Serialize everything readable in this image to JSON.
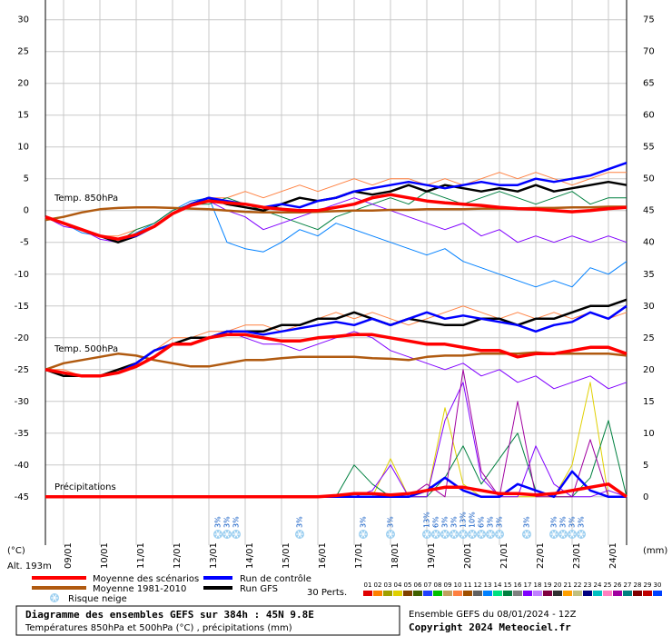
{
  "chart_data": {
    "type": "line",
    "unit_left": "(°C)",
    "unit_right": "(mm)",
    "altitude": "Alt. 193m",
    "annotations": [
      "Temp. 850hPa",
      "Temp. 500hPa",
      "Précipitations"
    ],
    "x": [
      0,
      12,
      24,
      36,
      48,
      60,
      72,
      84,
      96,
      108,
      120,
      132,
      144,
      156,
      168,
      180,
      192,
      204,
      216,
      228,
      240,
      252,
      264,
      276,
      288,
      300,
      312,
      324,
      336,
      348,
      360,
      372,
      384
    ],
    "xlim": [
      0,
      384
    ],
    "xticks": [
      {
        "value": 12,
        "label": "09/01"
      },
      {
        "value": 36,
        "label": "10/01"
      },
      {
        "value": 60,
        "label": "11/01"
      },
      {
        "value": 84,
        "label": "12/01"
      },
      {
        "value": 108,
        "label": "13/01"
      },
      {
        "value": 132,
        "label": "14/01"
      },
      {
        "value": 156,
        "label": "15/01"
      },
      {
        "value": 180,
        "label": "16/01"
      },
      {
        "value": 204,
        "label": "17/01"
      },
      {
        "value": 228,
        "label": "18/01"
      },
      {
        "value": 252,
        "label": "19/01"
      },
      {
        "value": 276,
        "label": "20/01"
      },
      {
        "value": 300,
        "label": "21/01"
      },
      {
        "value": 324,
        "label": "22/01"
      },
      {
        "value": 348,
        "label": "23/01"
      },
      {
        "value": 372,
        "label": "24/01"
      }
    ],
    "ylim": [
      -52.6,
      33.1
    ],
    "yticks": [
      -45,
      -40,
      -35,
      -30,
      -25,
      -20,
      -15,
      -10,
      -5,
      0,
      5,
      10,
      15,
      20,
      25,
      30
    ],
    "y2lim": [
      -7.6,
      78.1
    ],
    "y2ticks": [
      0,
      5,
      10,
      15,
      20,
      25,
      30,
      35,
      40,
      45,
      50,
      55,
      60,
      65,
      70,
      75
    ],
    "grid": true,
    "series": [
      {
        "name": "Moyenne 1981-2010",
        "color": "#b05a10",
        "t850": [
          -1.5,
          -1,
          -0.3,
          0.2,
          0.4,
          0.5,
          0.5,
          0.4,
          0.3,
          0.2,
          0,
          -0.2,
          -0.3,
          -0.3,
          -0.3,
          -0.2,
          -0.1,
          0,
          0,
          0.1,
          0.1,
          0.2,
          0.2,
          0.2,
          0.3,
          0.3,
          0.3,
          0.4,
          0.4,
          0.5,
          0.5,
          0.6,
          0.6
        ],
        "t500": [
          -25,
          -24,
          -23.5,
          -23,
          -22.5,
          -22.8,
          -23.5,
          -24,
          -24.5,
          -24.5,
          -24,
          -23.5,
          -23.5,
          -23.2,
          -23,
          -23,
          -23,
          -23,
          -23.2,
          -23.3,
          -23.5,
          -23,
          -22.8,
          -22.8,
          -22.5,
          -22.5,
          -22.5,
          -22.3,
          -22.5,
          -22.5,
          -22.5,
          -22.5,
          -22.8
        ]
      },
      {
        "name": "Run GFS",
        "color": "#000000",
        "t850": [
          -1,
          -2,
          -3,
          -4,
          -5,
          -4,
          -2.5,
          -0.5,
          1,
          2,
          1,
          0.5,
          0,
          1,
          2,
          1.5,
          2,
          3,
          2.5,
          3,
          4,
          3,
          4,
          3.5,
          3,
          3.5,
          3,
          4,
          3,
          3.5,
          4,
          4.5,
          4
        ],
        "t500": [
          -25,
          -26,
          -26,
          -26,
          -25,
          -24,
          -22,
          -21,
          -20,
          -20,
          -19,
          -19,
          -19,
          -18,
          -18,
          -17,
          -17,
          -16,
          -17,
          -18,
          -17,
          -17.5,
          -18,
          -18,
          -17,
          -17,
          -18,
          -17,
          -17,
          -16,
          -15,
          -15,
          -14
        ]
      },
      {
        "name": "Run de contrôle",
        "color": "#0000ff",
        "t850": [
          -1,
          -2,
          -3,
          -4,
          -4.5,
          -4,
          -2.5,
          -0.5,
          1,
          2,
          1.5,
          1,
          0.5,
          1,
          0.5,
          1.5,
          2,
          3,
          3.5,
          4,
          4.5,
          4,
          3.5,
          4,
          4.5,
          4,
          4,
          5,
          4.5,
          5,
          5.5,
          6.5,
          7.5
        ],
        "t500": [
          -25,
          -25.5,
          -26,
          -26,
          -25.5,
          -24,
          -22,
          -21,
          -21,
          -20,
          -19,
          -19,
          -19.5,
          -19,
          -18.5,
          -18,
          -17.5,
          -18,
          -17,
          -18,
          -17,
          -16,
          -17,
          -16.5,
          -17,
          -17.5,
          -18,
          -19,
          -18,
          -17.5,
          -16,
          -17,
          -15
        ],
        "precip": [
          0,
          0,
          0,
          0,
          0,
          0,
          0,
          0,
          0,
          0,
          0,
          0,
          0,
          0,
          0,
          0,
          0,
          0,
          0,
          0,
          0,
          1,
          3,
          1,
          0,
          0,
          2,
          1,
          0,
          4,
          1,
          0,
          0
        ]
      },
      {
        "name": "Moyenne des scénarios",
        "color": "#ff0000",
        "t850": [
          -1,
          -2,
          -3,
          -4,
          -4.5,
          -3.8,
          -2.5,
          -0.5,
          0.8,
          1.5,
          1.2,
          1,
          0.5,
          0.2,
          0,
          0,
          0.5,
          1,
          2,
          2.5,
          2,
          1.5,
          1.2,
          1,
          0.8,
          0.5,
          0.3,
          0.2,
          0,
          -0.2,
          0,
          0.3,
          0.5
        ],
        "t500": [
          -25,
          -25.5,
          -26,
          -26,
          -25.5,
          -24.5,
          -23,
          -21,
          -21,
          -20,
          -19.5,
          -19.5,
          -20,
          -20.5,
          -20.5,
          -20,
          -19.8,
          -19.5,
          -19.5,
          -20,
          -20.5,
          -21,
          -21,
          -21.5,
          -22,
          -22,
          -23,
          -22.5,
          -22.5,
          -22,
          -21.5,
          -21.5,
          -22.5
        ],
        "precip": [
          0,
          0,
          0,
          0,
          0,
          0,
          0,
          0,
          0,
          0,
          0,
          0,
          0,
          0,
          0,
          0,
          0.2,
          0.5,
          0.5,
          0.3,
          0.5,
          1,
          1.5,
          1.5,
          1,
          0.5,
          0.5,
          0.3,
          0.5,
          1,
          1.5,
          2,
          0
        ]
      }
    ],
    "snow_label": "Risque neige",
    "snow_risk": {
      "x": [
        114,
        120,
        126,
        168,
        210,
        228,
        252,
        258,
        264,
        270,
        276,
        282,
        288,
        294,
        300,
        318,
        336,
        342,
        348,
        354
      ],
      "values": [
        3,
        3,
        3,
        3,
        3,
        3,
        13,
        6,
        3,
        3,
        13,
        10,
        6,
        3,
        3,
        3,
        3,
        3,
        3,
        3
      ],
      "value_labels": [
        "3%",
        "3%",
        "3%",
        "3%",
        "3%",
        "3%",
        "13%",
        "6%",
        "3%",
        "3%",
        "13%",
        "10%",
        "6%",
        "3%",
        "3%",
        "3%",
        "3%",
        "3%",
        "3%",
        "3%"
      ]
    },
    "members_label": "30 Perts.",
    "members": [
      {
        "name": "01",
        "color": "#e00000"
      },
      {
        "name": "02",
        "color": "#ff8000"
      },
      {
        "name": "03",
        "color": "#a0a000"
      },
      {
        "name": "04",
        "color": "#e0d000",
        "precip": [
          0,
          0,
          0,
          0,
          0,
          0,
          0,
          0,
          0,
          0,
          0,
          0,
          0,
          0,
          0,
          0,
          0,
          0,
          0,
          6,
          0,
          0,
          14,
          2,
          0,
          0,
          0,
          0,
          0,
          5,
          18,
          0,
          0
        ]
      },
      {
        "name": "05",
        "color": "#804000"
      },
      {
        "name": "06",
        "color": "#406000"
      },
      {
        "name": "07",
        "color": "#2040ff"
      },
      {
        "name": "08",
        "color": "#00c000"
      },
      {
        "name": "09",
        "color": "#c0a060"
      },
      {
        "name": "10",
        "color": "#ff8040",
        "t850": [
          -1,
          -2,
          -3,
          -4,
          -4,
          -3,
          -2,
          0,
          1,
          2,
          2,
          3,
          2,
          3,
          4,
          3,
          4,
          5,
          4,
          5,
          5,
          4,
          5,
          4,
          5,
          6,
          5,
          6,
          5,
          4,
          5,
          6,
          6
        ],
        "t500": [
          -25,
          -25,
          -26,
          -26,
          -25,
          -24,
          -22,
          -20,
          -20,
          -19,
          -19,
          -18,
          -18,
          -19,
          -18,
          -17,
          -16,
          -17,
          -16,
          -17,
          -18,
          -17,
          -16,
          -15,
          -16,
          -17,
          -16,
          -17,
          -16,
          -17,
          -16,
          -17,
          -16
        ]
      },
      {
        "name": "11",
        "color": "#a05000"
      },
      {
        "name": "12",
        "color": "#606060"
      },
      {
        "name": "13",
        "color": "#0080ff",
        "t850": [
          -1,
          -2,
          -3.5,
          -4,
          -5,
          -3.5,
          -2,
          0,
          1.5,
          2,
          -5,
          -6,
          -6.5,
          -5,
          -3,
          -4,
          -2,
          -3,
          -4,
          -5,
          -6,
          -7,
          -6,
          -8,
          -9,
          -10,
          -11,
          -12,
          -11,
          -12,
          -9,
          -10,
          -8
        ]
      },
      {
        "name": "14",
        "color": "#00e080"
      },
      {
        "name": "15",
        "color": "#008040",
        "t850": [
          -1,
          -2,
          -3,
          -4,
          -5,
          -3,
          -2,
          0,
          1,
          1,
          2,
          1,
          0,
          -1,
          -2,
          -3,
          -1,
          0,
          1,
          2,
          1,
          3,
          2,
          1,
          2,
          3,
          2,
          1,
          2,
          3,
          1,
          2,
          2
        ],
        "precip": [
          0,
          0,
          0,
          0,
          0,
          0,
          0,
          0,
          0,
          0,
          0,
          0,
          0,
          0,
          0,
          0,
          0,
          5,
          2,
          0,
          0,
          0,
          3,
          8,
          2,
          6,
          10,
          1,
          0,
          0,
          3,
          12,
          0
        ]
      },
      {
        "name": "16",
        "color": "#808080"
      },
      {
        "name": "17",
        "color": "#8000ff",
        "t850": [
          -1,
          -2.5,
          -3,
          -4.5,
          -5,
          -4,
          -2.5,
          -0.5,
          1,
          1.5,
          0,
          -1,
          -3,
          -2,
          -1,
          0,
          1,
          2,
          1,
          0,
          -1,
          -2,
          -3,
          -2,
          -4,
          -3,
          -5,
          -4,
          -5,
          -4,
          -5,
          -4,
          -5
        ],
        "t500": [
          -25,
          -26,
          -26,
          -26,
          -25,
          -24,
          -22,
          -21,
          -21,
          -20,
          -19,
          -20,
          -21,
          -21,
          -22,
          -21,
          -20,
          -19,
          -20,
          -22,
          -23,
          -24,
          -25,
          -24,
          -26,
          -25,
          -27,
          -26,
          -28,
          -27,
          -26,
          -28,
          -27
        ],
        "precip": [
          0,
          0,
          0,
          0,
          0,
          0,
          0,
          0,
          0,
          0,
          0,
          0,
          0,
          0,
          0,
          0,
          0,
          0,
          1,
          5,
          0,
          0,
          12,
          18,
          3,
          0,
          0,
          8,
          2,
          0,
          0,
          1,
          0
        ]
      },
      {
        "name": "18",
        "color": "#c080ff"
      },
      {
        "name": "19",
        "color": "#800040"
      },
      {
        "name": "20",
        "color": "#303030"
      },
      {
        "name": "21",
        "color": "#ffa000"
      },
      {
        "name": "22",
        "color": "#c0c080"
      },
      {
        "name": "23",
        "color": "#000080"
      },
      {
        "name": "24",
        "color": "#00c0c0"
      },
      {
        "name": "25",
        "color": "#ff80c0"
      },
      {
        "name": "26",
        "color": "#a000a0",
        "precip": [
          0,
          0,
          0,
          0,
          0,
          0,
          0,
          0,
          0,
          0,
          0,
          0,
          0,
          0,
          0,
          0,
          0,
          0,
          0,
          0,
          0,
          2,
          0,
          20,
          4,
          0,
          15,
          0,
          0,
          0,
          9,
          0,
          0
        ]
      },
      {
        "name": "27",
        "color": "#008080"
      },
      {
        "name": "28",
        "color": "#800000"
      },
      {
        "name": "29",
        "color": "#c00000"
      },
      {
        "name": "30",
        "color": "#0040ff"
      }
    ],
    "footer": {
      "title": "Diagramme des ensembles GEFS sur 384h : 45N 9.8E",
      "subtitle": "Températures 850hPa et 500hPa (°C) , précipitations (mm)",
      "run": "Ensemble GEFS du 08/01/2024 - 12Z",
      "copyright": "Copyright 2024 Meteociel.fr"
    }
  }
}
